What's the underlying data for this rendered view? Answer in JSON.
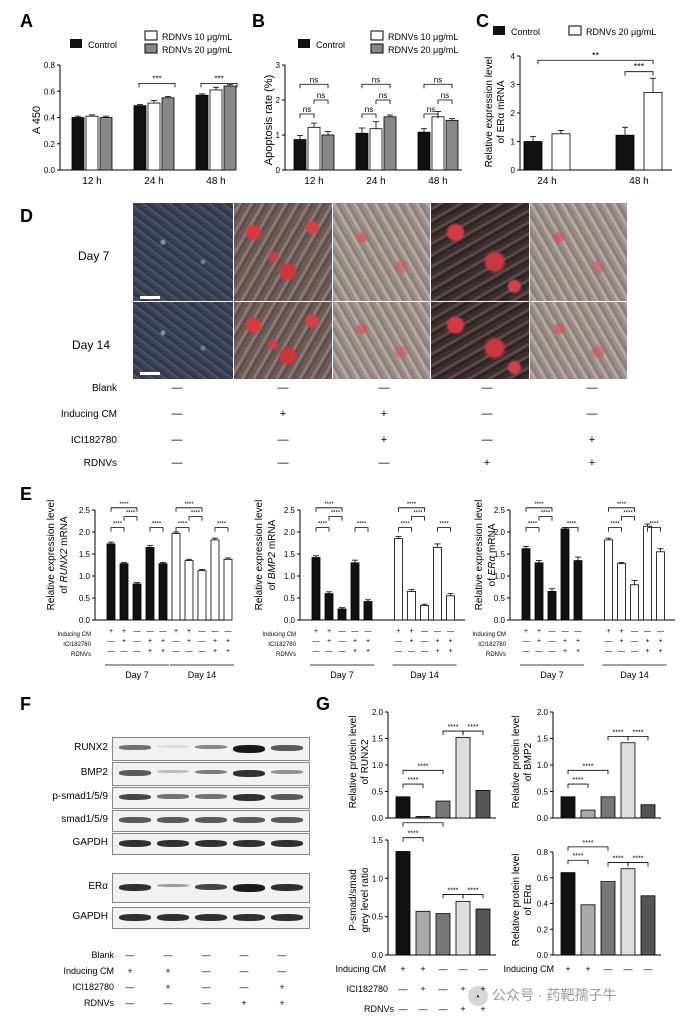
{
  "panels": {
    "A": {
      "letter": "A",
      "ylabel": "A 450",
      "legend": [
        "Control",
        "RDNVs 10 μg/mL",
        "RDNVs 20 μg/mL"
      ],
      "categories": [
        "12 h",
        "24 h",
        "48 h"
      ],
      "yticks": [
        "0.0",
        "0.2",
        "0.4",
        "0.6",
        "0.8"
      ],
      "sig": [
        "***",
        "***"
      ]
    },
    "B": {
      "letter": "B",
      "ylabel": "Apoptosis rate (%)",
      "legend": [
        "Control",
        "RDNVs 10 μg/mL",
        "RDNVs 20 μg/mL"
      ],
      "categories": [
        "12 h",
        "24 h",
        "48 h"
      ],
      "yticks": [
        "0",
        "1",
        "2",
        "3"
      ],
      "sig": "ns"
    },
    "C": {
      "letter": "C",
      "ylabel1": "Relative expression level",
      "ylabel2": "of ERα mRNA",
      "legend": [
        "Control",
        "RDNVs 20 μg/mL"
      ],
      "categories": [
        "24 h",
        "48 h"
      ],
      "yticks": [
        "0",
        "1",
        "2",
        "3",
        "4"
      ],
      "sig": [
        "**",
        "***"
      ]
    },
    "D": {
      "letter": "D",
      "rows": [
        "Day 7",
        "Day 14"
      ],
      "treat_labels": [
        "Blank",
        "Inducing CM",
        "ICI182780",
        "RDNVs"
      ],
      "treat_matrix": [
        [
          "—",
          "—",
          "—",
          "—",
          "—"
        ],
        [
          "—",
          "+",
          "+",
          "—",
          "—"
        ],
        [
          "—",
          "—",
          "+",
          "—",
          "+"
        ],
        [
          "—",
          "—",
          "—",
          "+",
          "+"
        ]
      ]
    },
    "E": {
      "letter": "E",
      "sub": [
        {
          "ylabel1": "Relative expression level",
          "ylabel2_pre": "of ",
          "ylabel2_it": "RUNX2",
          "ylabel2_post": " mRNA",
          "yticks": [
            "0.0",
            "0.5",
            "1.0",
            "1.5",
            "2.0",
            "2.5"
          ]
        },
        {
          "ylabel1": "Relative expression level",
          "ylabel2_pre": "of ",
          "ylabel2_it": "BMP2",
          "ylabel2_post": " mRNA",
          "yticks": [
            "0.0",
            "0.5",
            "1.0",
            "1.5",
            "2.0",
            "2.5"
          ]
        },
        {
          "ylabel1": "Relative expression level",
          "ylabel2_pre": "of ",
          "ylabel2_it": "ERα",
          "ylabel2_post": " mRNA",
          "yticks": [
            "0.0",
            "0.5",
            "1.0",
            "1.5",
            "2.0",
            "2.5"
          ]
        }
      ],
      "treat_labels": [
        "Inducing CM",
        "ICI182780",
        "RDNVs"
      ],
      "days": [
        "Day 7",
        "Day 14"
      ],
      "sig": "****"
    },
    "F": {
      "letter": "F",
      "blots": [
        "RUNX2",
        "BMP2",
        "p-smad1/5/9",
        "smad1/5/9",
        "GAPDH",
        "ERα",
        "GAPDH"
      ],
      "treat_labels": [
        "Blank",
        "Inducing CM",
        "ICI182780",
        "RDNVs"
      ]
    },
    "G": {
      "letter": "G",
      "sub": [
        {
          "ylabel1": "Relative protein level",
          "ylabel2": "of RUNX2",
          "yticks": [
            "0.0",
            "0.5",
            "1.0",
            "1.5",
            "2.0"
          ]
        },
        {
          "ylabel1": "Relative protein level",
          "ylabel2": "of BMP2",
          "yticks": [
            "0.0",
            "0.5",
            "1.0",
            "1.5",
            "2.0"
          ]
        },
        {
          "ylabel1": "P-smad/smad",
          "ylabel2": "grey level ratio",
          "yticks": [
            "0.0",
            "0.5",
            "1.0",
            "1.5"
          ]
        },
        {
          "ylabel1": "Relative protein level",
          "ylabel2": "of ERα",
          "yticks": [
            "0.0",
            "0.2",
            "0.4",
            "0.6",
            "0.8"
          ]
        }
      ],
      "treat_labels": [
        "Inducing CM",
        "ICI182780",
        "RDNVs"
      ],
      "sig": "****"
    },
    "watermark": "公众号 · 药靶孺子牛"
  },
  "chart_data": [
    {
      "type": "bar",
      "panel": "A",
      "categories": [
        "12 h",
        "24 h",
        "48 h"
      ],
      "ylim": [
        0,
        0.8
      ],
      "ylabel": "A 450",
      "series": [
        {
          "name": "Control",
          "values": [
            0.4,
            0.49,
            0.57
          ],
          "err": [
            0.01,
            0.01,
            0.01
          ]
        },
        {
          "name": "RDNVs 10 μg/mL",
          "values": [
            0.41,
            0.51,
            0.61
          ],
          "err": [
            0.01,
            0.02,
            0.02
          ]
        },
        {
          "name": "RDNVs 20 μg/mL",
          "values": [
            0.4,
            0.55,
            0.64
          ],
          "err": [
            0.01,
            0.01,
            0.01
          ]
        }
      ]
    },
    {
      "type": "bar",
      "panel": "B",
      "categories": [
        "12 h",
        "24 h",
        "48 h"
      ],
      "ylim": [
        0,
        3
      ],
      "ylabel": "Apoptosis rate (%)",
      "series": [
        {
          "name": "Control",
          "values": [
            0.87,
            1.05,
            1.08
          ],
          "err": [
            0.12,
            0.15,
            0.1
          ]
        },
        {
          "name": "RDNVs 10 μg/mL",
          "values": [
            1.22,
            1.18,
            1.52
          ],
          "err": [
            0.12,
            0.2,
            0.15
          ]
        },
        {
          "name": "RDNVs 20 μg/mL",
          "values": [
            1.0,
            1.52,
            1.42
          ],
          "err": [
            0.1,
            0.05,
            0.05
          ]
        }
      ]
    },
    {
      "type": "bar",
      "panel": "C",
      "categories": [
        "24 h",
        "48 h"
      ],
      "ylim": [
        0,
        4
      ],
      "series": [
        {
          "name": "Control",
          "values": [
            1.0,
            1.22
          ],
          "err": [
            0.18,
            0.28
          ]
        },
        {
          "name": "RDNVs 20 μg/mL",
          "values": [
            1.27,
            2.72
          ],
          "err": [
            0.12,
            0.5
          ]
        }
      ]
    },
    {
      "type": "bar",
      "panel": "E1",
      "ylim": [
        0,
        2.5
      ],
      "series": [
        {
          "values": [
            1.73,
            1.28,
            0.82,
            1.65,
            1.28
          ],
          "err": [
            0.04,
            0.03,
            0.03,
            0.04,
            0.03
          ]
        },
        {
          "values": [
            1.97,
            1.35,
            1.12,
            1.82,
            1.38
          ],
          "err": [
            0.03,
            0.03,
            0.03,
            0.04,
            0.03
          ]
        }
      ]
    },
    {
      "type": "bar",
      "panel": "E2",
      "ylim": [
        0,
        2.5
      ],
      "series": [
        {
          "values": [
            1.42,
            0.6,
            0.25,
            1.3,
            0.42
          ],
          "err": [
            0.04,
            0.04,
            0.03,
            0.06,
            0.04
          ]
        },
        {
          "values": [
            1.85,
            0.65,
            0.33,
            1.65,
            0.55
          ],
          "err": [
            0.05,
            0.04,
            0.03,
            0.08,
            0.05
          ]
        }
      ]
    },
    {
      "type": "bar",
      "panel": "E3",
      "ylim": [
        0,
        2.5
      ],
      "series": [
        {
          "values": [
            1.62,
            1.3,
            0.65,
            2.07,
            1.35
          ],
          "err": [
            0.05,
            0.05,
            0.06,
            0.03,
            0.08
          ]
        },
        {
          "values": [
            1.82,
            1.28,
            0.8,
            2.13,
            1.55
          ],
          "err": [
            0.04,
            0.03,
            0.1,
            0.05,
            0.07
          ]
        }
      ]
    },
    {
      "type": "bar",
      "panel": "G1",
      "ylim": [
        0,
        2.0
      ],
      "values": [
        0.4,
        0.03,
        0.32,
        1.52,
        0.52
      ]
    },
    {
      "type": "bar",
      "panel": "G2",
      "ylim": [
        0,
        2.0
      ],
      "values": [
        0.4,
        0.15,
        0.4,
        1.42,
        0.25
      ]
    },
    {
      "type": "bar",
      "panel": "G3",
      "ylim": [
        0,
        1.5
      ],
      "values": [
        1.35,
        0.57,
        0.54,
        0.7,
        0.6
      ]
    },
    {
      "type": "bar",
      "panel": "G4",
      "ylim": [
        0,
        0.8
      ],
      "values": [
        0.64,
        0.39,
        0.57,
        0.67,
        0.46
      ]
    }
  ]
}
